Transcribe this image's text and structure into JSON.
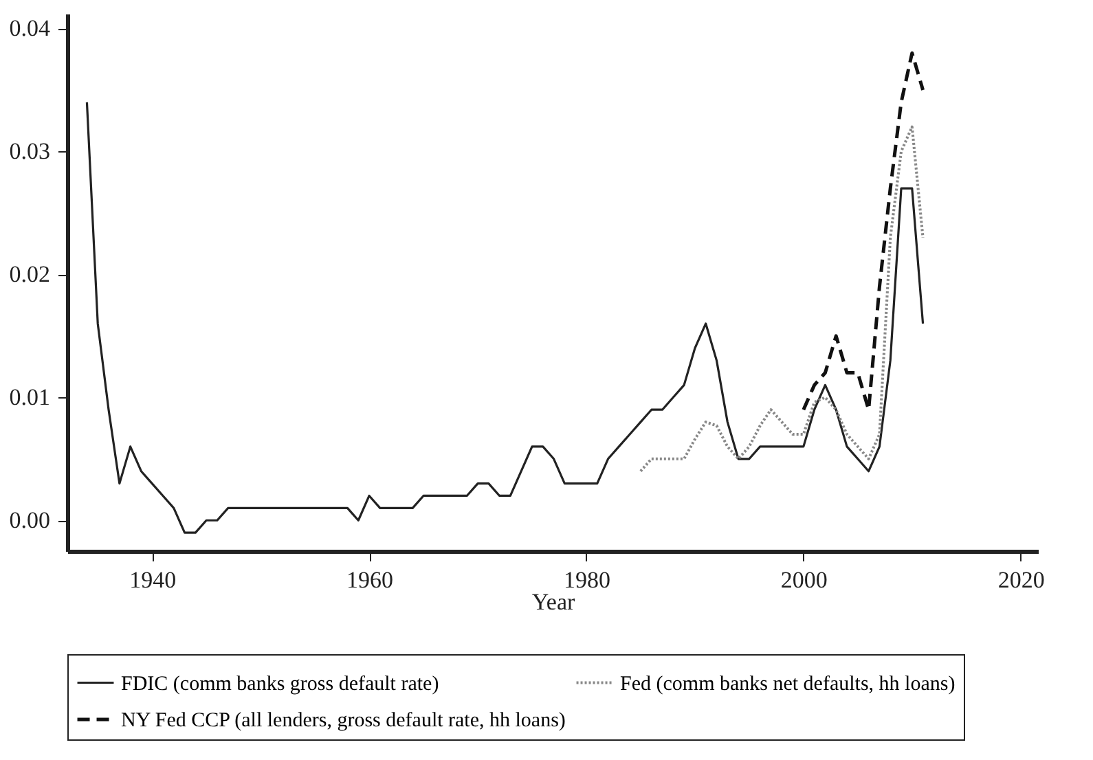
{
  "chart_data": {
    "type": "line",
    "xlabel": "Year",
    "xlim": [
      1932.2,
      2021.6
    ],
    "xticks": [
      1940,
      1960,
      1980,
      2000,
      2020
    ],
    "ylim": [
      -0.0025,
      0.0412
    ],
    "yticks": [
      {
        "value": 0,
        "label": "0.00"
      },
      {
        "value": 0.01,
        "label": "0.01"
      },
      {
        "value": 0.02,
        "label": "0.02"
      },
      {
        "value": 0.03,
        "label": "0.03"
      },
      {
        "value": 0.04,
        "label": "0.04"
      }
    ],
    "grid": false,
    "legend": "bottom",
    "marker": "none",
    "series": [
      {
        "name": "FDIC (comm banks gross default rate)",
        "color": "#222222",
        "line_style": "solid",
        "x": [
          1934,
          1935,
          1936,
          1937,
          1938,
          1939,
          1940,
          1941,
          1942,
          1943,
          1944,
          1945,
          1946,
          1947,
          1948,
          1949,
          1950,
          1951,
          1952,
          1953,
          1954,
          1955,
          1956,
          1957,
          1958,
          1959,
          1960,
          1961,
          1962,
          1963,
          1964,
          1965,
          1966,
          1967,
          1968,
          1969,
          1970,
          1971,
          1972,
          1973,
          1974,
          1975,
          1976,
          1977,
          1978,
          1979,
          1980,
          1981,
          1982,
          1983,
          1984,
          1985,
          1986,
          1987,
          1988,
          1989,
          1990,
          1991,
          1992,
          1993,
          1994,
          1995,
          1996,
          1997,
          1998,
          1999,
          2000,
          2001,
          2002,
          2003,
          2004,
          2005,
          2006,
          2007,
          2008,
          2009,
          2010,
          2011
        ],
        "values": [
          0.034,
          0.016,
          0.009,
          0.003,
          0.006,
          0.004,
          0.003,
          0.002,
          0.001,
          -0.001,
          -0.001,
          0,
          0,
          0.001,
          0.001,
          0.001,
          0.001,
          0.001,
          0.001,
          0.001,
          0.001,
          0.001,
          0.001,
          0.001,
          0.001,
          0,
          0.002,
          0.001,
          0.001,
          0.001,
          0.001,
          0.002,
          0.002,
          0.002,
          0.002,
          0.002,
          0.003,
          0.003,
          0.002,
          0.002,
          0.004,
          0.006,
          0.006,
          0.005,
          0.003,
          0.003,
          0.003,
          0.003,
          0.005,
          0.006,
          0.007,
          0.008,
          0.009,
          0.009,
          0.01,
          0.011,
          0.014,
          0.016,
          0.013,
          0.008,
          0.005,
          0.005,
          0.006,
          0.006,
          0.006,
          0.006,
          0.006,
          0.009,
          0.011,
          0.009,
          0.006,
          0.005,
          0.004,
          0.006,
          0.013,
          0.027,
          0.027,
          0.016
        ]
      },
      {
        "name": "Fed (comm banks net defaults, hh loans)",
        "color": "#888888",
        "line_style": "dotted",
        "x": [
          1985,
          1986,
          1987,
          1988,
          1989,
          1990,
          1991,
          1992,
          1993,
          1994,
          1995,
          1996,
          1997,
          1998,
          1999,
          2000,
          2001,
          2002,
          2003,
          2004,
          2005,
          2006,
          2007,
          2008,
          2009,
          2010,
          2011
        ],
        "values": [
          0.004,
          0.005,
          0.005,
          0.005,
          0.005,
          0.0066,
          0.008,
          0.0077,
          0.006,
          0.005,
          0.006,
          0.0077,
          0.009,
          0.008,
          0.007,
          0.007,
          0.0096,
          0.01,
          0.009,
          0.007,
          0.006,
          0.005,
          0.007,
          0.023,
          0.03,
          0.032,
          0.023
        ]
      },
      {
        "name": "NY Fed CCP (all lenders, gross default rate, hh loans)",
        "color": "#111111",
        "line_style": "dashed",
        "x": [
          2000,
          2001,
          2002,
          2003,
          2004,
          2005,
          2006,
          2007,
          2008,
          2009,
          2010,
          2011
        ],
        "values": [
          0.009,
          0.011,
          0.012,
          0.015,
          0.012,
          0.012,
          0.009,
          0.019,
          0.027,
          0.034,
          0.038,
          0.035
        ]
      }
    ]
  }
}
